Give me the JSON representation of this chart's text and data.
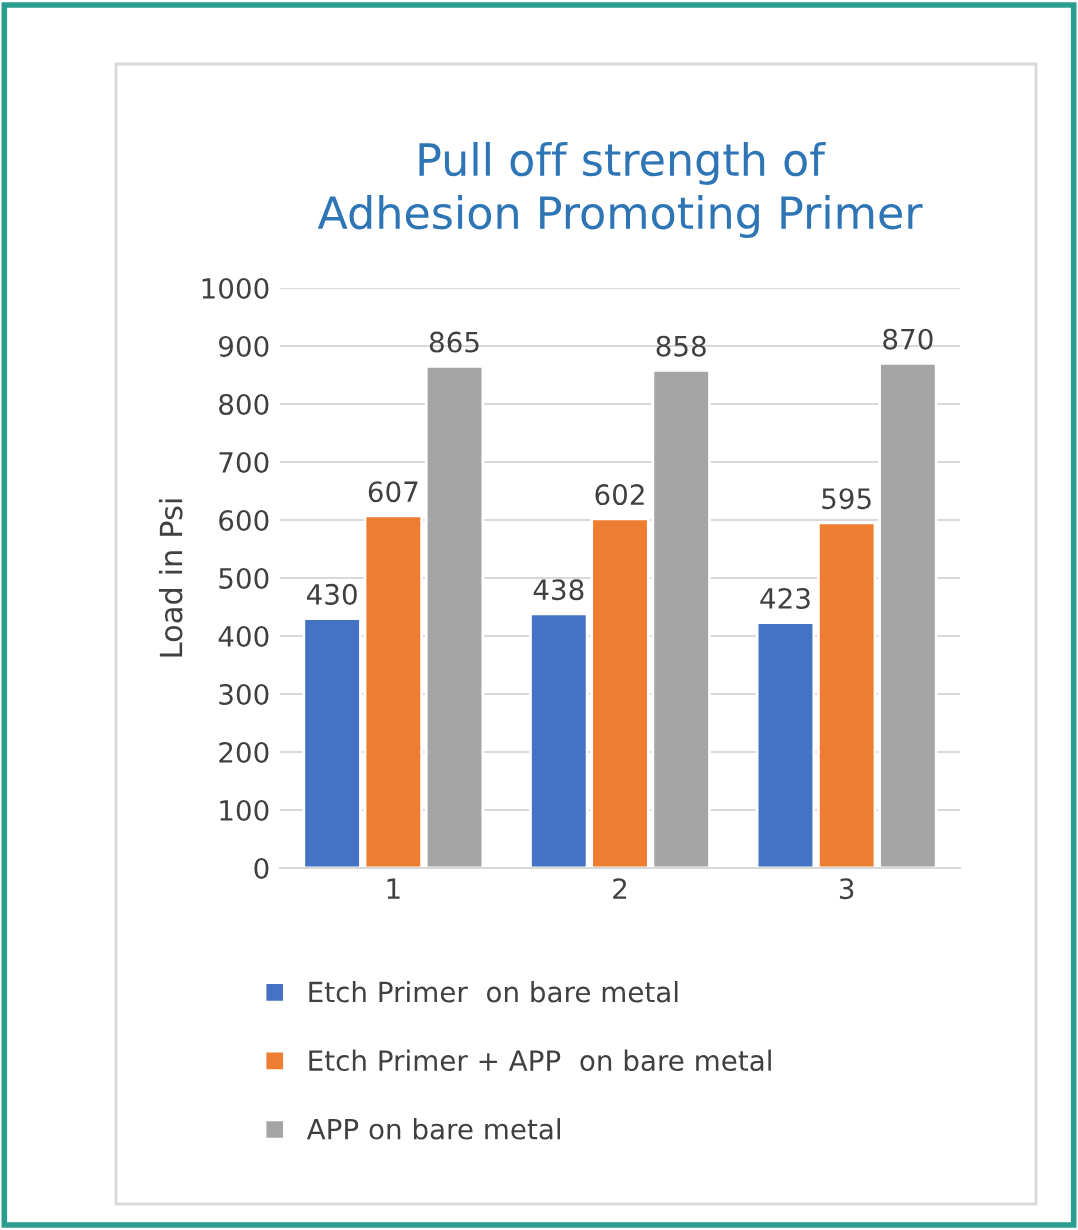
{
  "chart_data": {
    "type": "bar",
    "title": "Pull off strength of\nAdhesion Promoting Primer",
    "ylabel": "Load in Psi",
    "categories": [
      "1",
      "2",
      "3"
    ],
    "series": [
      {
        "name": "Etch Primer  on bare metal",
        "color": "#4472c4",
        "values": [
          430,
          438,
          423
        ]
      },
      {
        "name": "Etch Primer + APP  on bare metal",
        "color": "#ed7d31",
        "values": [
          607,
          602,
          595
        ]
      },
      {
        "name": "APP on bare metal",
        "color": "#a5a5a5",
        "values": [
          865,
          858,
          870
        ]
      }
    ],
    "ylim": [
      0,
      1000
    ],
    "yticks": [
      0,
      100,
      200,
      300,
      400,
      500,
      600,
      700,
      800,
      900,
      1000
    ],
    "grid": "y",
    "legend": "bottom",
    "data_labels": true
  }
}
